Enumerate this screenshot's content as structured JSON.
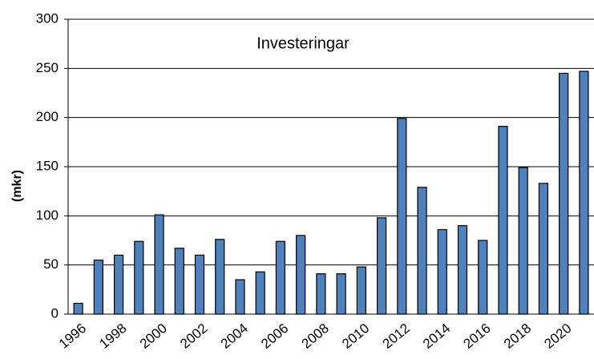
{
  "chart_data": {
    "type": "bar",
    "title": "Investeringar",
    "y_label": "(mkr)",
    "categories": [
      "1996",
      null,
      "1998",
      null,
      "2000",
      null,
      "2002",
      null,
      "2004",
      null,
      "2006",
      null,
      "2008",
      null,
      "2010",
      null,
      "2012",
      null,
      "2014",
      null,
      "2016",
      null,
      "2018",
      null,
      "2020",
      null
    ],
    "values": [
      11,
      55,
      60,
      74,
      101,
      67,
      60,
      76,
      35,
      43,
      74,
      80,
      41,
      41,
      48,
      98,
      199,
      129,
      86,
      90,
      75,
      191,
      149,
      133,
      245,
      247
    ],
    "color": "#4f81bd",
    "ylim": [
      0,
      300
    ],
    "yticks": [
      0,
      50,
      100,
      150,
      200,
      250,
      300
    ],
    "grid": true
  }
}
